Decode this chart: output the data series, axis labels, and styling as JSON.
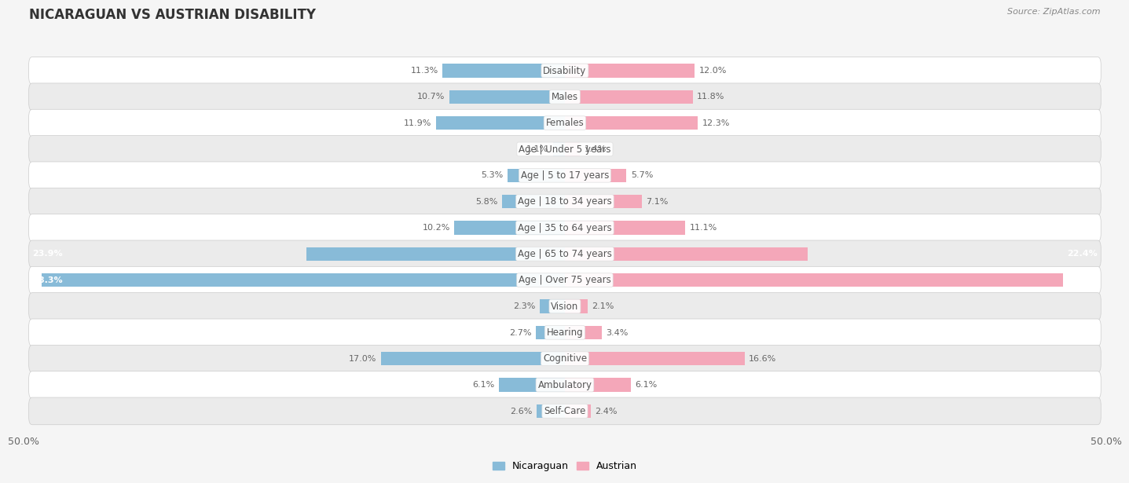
{
  "title": "NICARAGUAN VS AUSTRIAN DISABILITY",
  "source": "Source: ZipAtlas.com",
  "categories": [
    "Disability",
    "Males",
    "Females",
    "Age | Under 5 years",
    "Age | 5 to 17 years",
    "Age | 18 to 34 years",
    "Age | 35 to 64 years",
    "Age | 65 to 74 years",
    "Age | Over 75 years",
    "Vision",
    "Hearing",
    "Cognitive",
    "Ambulatory",
    "Self-Care"
  ],
  "nicaraguan": [
    11.3,
    10.7,
    11.9,
    1.1,
    5.3,
    5.8,
    10.2,
    23.9,
    48.3,
    2.3,
    2.7,
    17.0,
    6.1,
    2.6
  ],
  "austrian": [
    12.0,
    11.8,
    12.3,
    1.4,
    5.7,
    7.1,
    11.1,
    22.4,
    46.0,
    2.1,
    3.4,
    16.6,
    6.1,
    2.4
  ],
  "nicaraguan_color": "#88bbd8",
  "austrian_color": "#f4a7b9",
  "bar_height": 0.52,
  "x_max": 50.0,
  "background_color": "#f5f5f5",
  "row_colors": [
    "#ffffff",
    "#ebebeb"
  ],
  "label_fontsize": 8.5,
  "title_fontsize": 12,
  "value_fontsize": 8.0,
  "large_threshold": 20
}
